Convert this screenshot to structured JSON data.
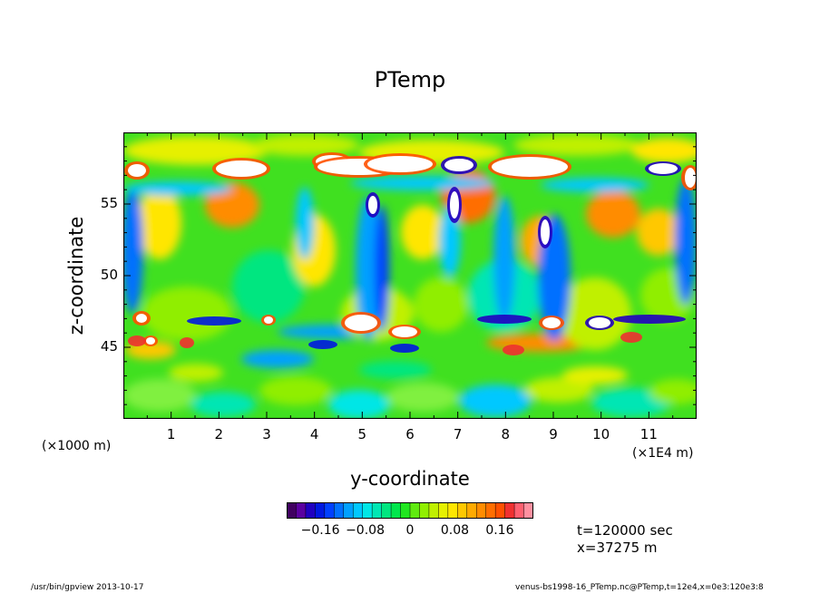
{
  "chart_data": {
    "type": "heatmap",
    "title": "PTemp",
    "xlabel": "y-coordinate",
    "ylabel": "z-coordinate",
    "x_unit_left": "(×1000 m)",
    "x_unit_right": "(×1E4 m)",
    "xlim": [
      0.0,
      12.0
    ],
    "ylim": [
      40,
      60
    ],
    "x_ticks": [
      "1",
      "2",
      "3",
      "4",
      "5",
      "6",
      "7",
      "8",
      "9",
      "10",
      "11"
    ],
    "y_ticks": [
      "45",
      "50",
      "55"
    ],
    "y_tick_values": [
      45,
      50,
      55
    ],
    "colorbar": {
      "range": [
        -0.22,
        0.22
      ],
      "tick_labels": [
        "−0.16",
        "−0.08",
        "0",
        "0.08",
        "0.16"
      ],
      "tick_values": [
        -0.16,
        -0.08,
        0,
        0.08,
        0.16
      ],
      "colors": [
        "#400060",
        "#5a00a0",
        "#2000c0",
        "#0018e0",
        "#0040ff",
        "#0070ff",
        "#00a0ff",
        "#00c8ff",
        "#00e6e6",
        "#00e6b4",
        "#00e680",
        "#00e64c",
        "#20e620",
        "#60ea10",
        "#90ee00",
        "#c0f000",
        "#e6f000",
        "#ffe600",
        "#ffc800",
        "#ffaa00",
        "#ff8c00",
        "#ff6e00",
        "#ff5000",
        "#f03030",
        "#ff6070",
        "#ff90a0"
      ]
    },
    "annotations": {
      "time": "t=120000 sec",
      "xpos": "x=37275 m"
    }
  },
  "footer": {
    "left": "/usr/bin/gpview   2013-10-17",
    "right": "venus-bs1998-16_PTemp.nc@PTemp,t=12e4,x=0e3:120e3:8"
  }
}
